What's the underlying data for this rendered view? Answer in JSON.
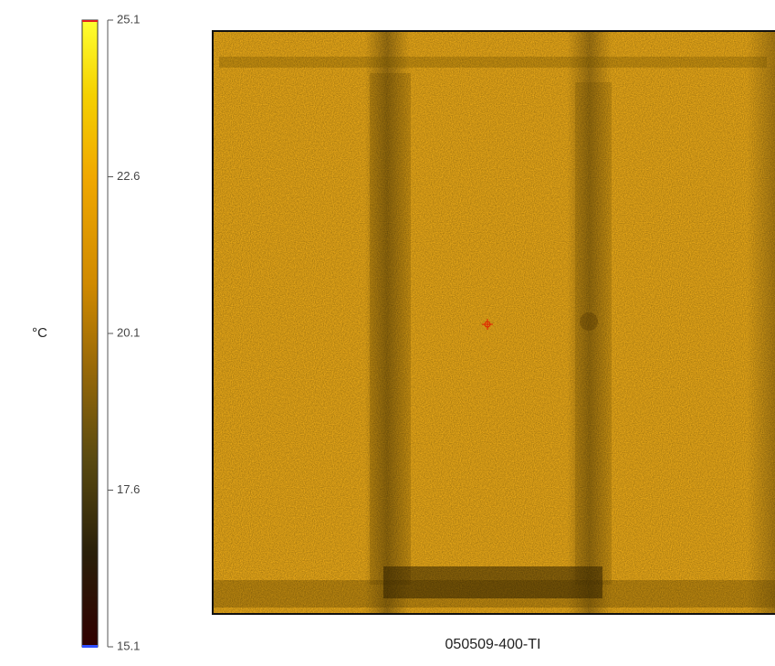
{
  "colorbar": {
    "unit": "°C",
    "ticks": [
      "25.1",
      "22.6",
      "20.1",
      "17.6",
      "15.1"
    ]
  },
  "image": {
    "caption": "050509-400-TI"
  }
}
